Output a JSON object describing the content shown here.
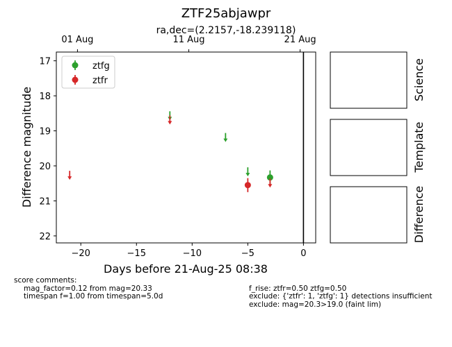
{
  "chart_data": {
    "type": "scatter",
    "title": "ZTF25abjawpr",
    "subtitle": "ra,dec=(2.2157,-18.239118)",
    "xlabel": "Days before 21-Aug-25 08:38",
    "ylabel": "Difference magnitude",
    "xlim": [
      -22.2,
      1.1
    ],
    "ylim": [
      22.2,
      16.75
    ],
    "y_inverted": true,
    "x_ticks": [
      -20,
      -15,
      -10,
      -5,
      0
    ],
    "x_tick_labels": [
      "−20",
      "−15",
      "−10",
      "−5",
      "0"
    ],
    "y_ticks": [
      17,
      18,
      19,
      20,
      21,
      22
    ],
    "y_tick_labels": [
      "17",
      "18",
      "19",
      "20",
      "21",
      "22"
    ],
    "top_ticks": [
      {
        "x": -20.3,
        "label": "01 Aug"
      },
      {
        "x": -10.3,
        "label": "11 Aug"
      },
      {
        "x": -0.3,
        "label": "21 Aug"
      }
    ],
    "vline_x": 0,
    "legend": "top-left",
    "grid": false,
    "series": [
      {
        "name": "ztfg",
        "color": "#2ca02c",
        "points": [
          {
            "x": -3.0,
            "y": 20.33,
            "yerr": 0.2
          }
        ],
        "upper_limits": [
          {
            "x": -12.0,
            "y": 18.6
          },
          {
            "x": -7.0,
            "y": 19.22
          },
          {
            "x": -5.0,
            "y": 20.2
          }
        ]
      },
      {
        "name": "ztfr",
        "color": "#d62728",
        "points": [
          {
            "x": -5.0,
            "y": 20.55,
            "yerr": 0.2
          }
        ],
        "upper_limits": [
          {
            "x": -21.0,
            "y": 20.3
          },
          {
            "x": -12.0,
            "y": 18.72
          },
          {
            "x": -3.0,
            "y": 20.52
          }
        ]
      }
    ]
  },
  "panels": [
    "Science",
    "Template",
    "Difference"
  ],
  "comments": {
    "left_heading": "score comments:",
    "left_lines": [
      "mag_factor=0.12 from mag=20.33",
      "timespan f=1.00 from timespan=5.0d"
    ],
    "right_lines": [
      "f_rise: ztfr=0.50 ztfg=0.50",
      "exclude: {'ztfr': 1, 'ztfg': 1} detections insufficient",
      "exclude: mag=20.3>19.0 (faint lim)"
    ]
  }
}
